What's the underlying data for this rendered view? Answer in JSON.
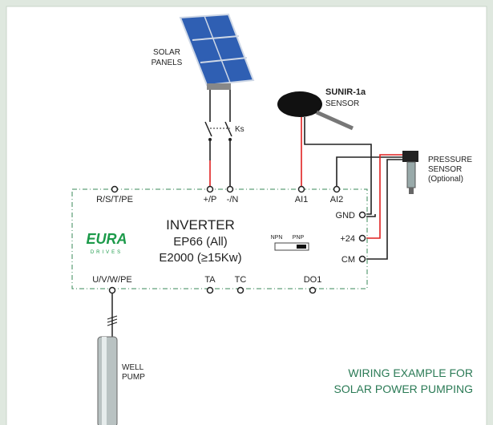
{
  "solar_panels": {
    "label": [
      "SOLAR",
      "PANELS"
    ]
  },
  "switch": {
    "label": "Ks"
  },
  "sunir_sensor": {
    "name": "SUNIR-1a",
    "label": "SENSOR"
  },
  "pressure_sensor": {
    "label": [
      "PRESSURE",
      "SENSOR",
      "(Optional)"
    ]
  },
  "inverter": {
    "title": "INVERTER",
    "models": [
      "EP66 (All)",
      "E2000 (≥15Kw)"
    ],
    "brand": {
      "logo": "EURA",
      "sub": "DRIVES"
    },
    "switch_labels": [
      "NPN",
      "PNP"
    ],
    "terminals_top": [
      "R/S/T/PE",
      "+/P",
      "-/N",
      "AI1",
      "AI2"
    ],
    "terminals_right": [
      "GND",
      "+24",
      "CM"
    ],
    "terminals_bottom": [
      "U/V/W/PE",
      "TA",
      "TC",
      "DO1"
    ]
  },
  "pump": {
    "label": [
      "WELL",
      "PUMP"
    ]
  },
  "caption": [
    "WIRING EXAMPLE FOR",
    "SOLAR POWER PUMPING"
  ]
}
